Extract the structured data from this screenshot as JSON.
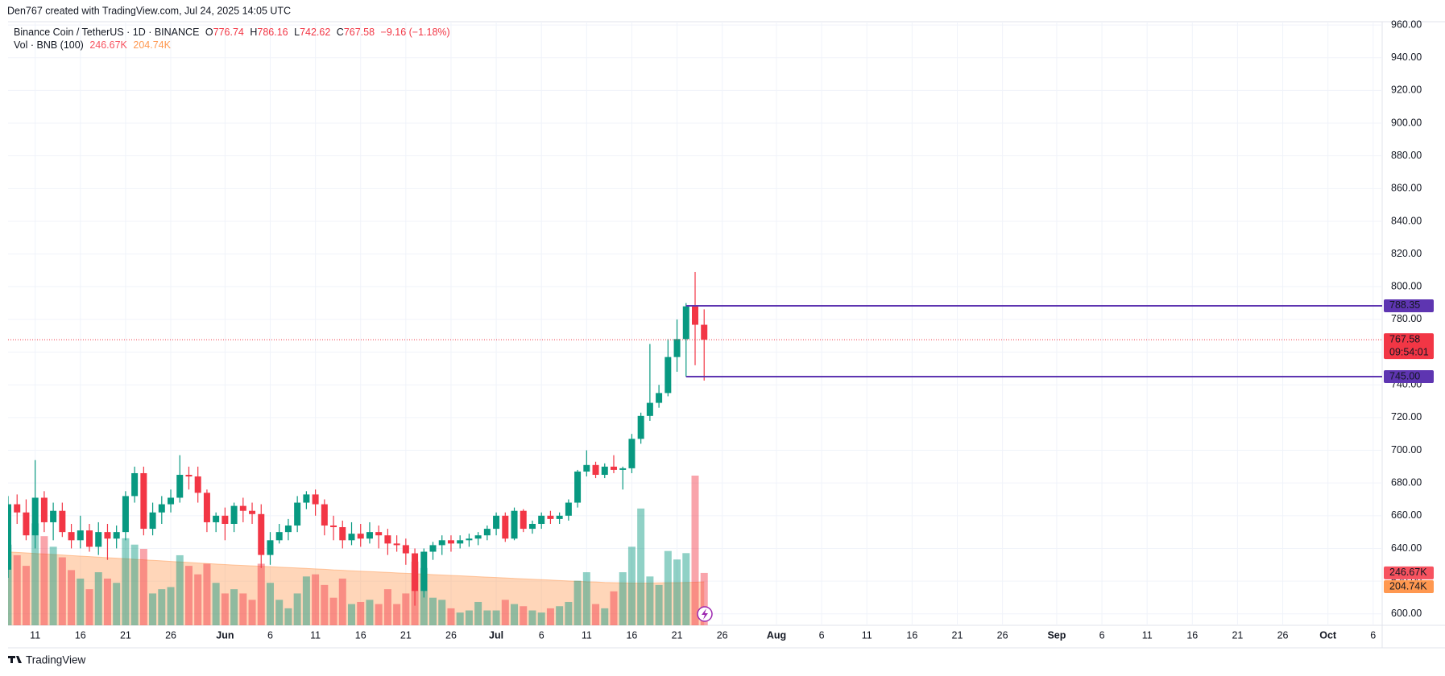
{
  "header": {
    "attribution": "Den767 created with TradingView.com, Jul 24, 2025 14:05 UTC"
  },
  "footer": {
    "brand": "TradingView"
  },
  "chart_data": {
    "type": "candlestick",
    "title": "Binance Coin / TetherUS · 1D · BINANCE",
    "ohlc_labels": [
      "O",
      "H",
      "L",
      "C"
    ],
    "change": "−9.16 (−1.18%)",
    "x": [
      "2025-05-08",
      "2025-05-09",
      "2025-05-10",
      "2025-05-11",
      "2025-05-12",
      "2025-05-13",
      "2025-05-14",
      "2025-05-15",
      "2025-05-16",
      "2025-05-17",
      "2025-05-18",
      "2025-05-19",
      "2025-05-20",
      "2025-05-21",
      "2025-05-22",
      "2025-05-23",
      "2025-05-24",
      "2025-05-25",
      "2025-05-26",
      "2025-05-27",
      "2025-05-28",
      "2025-05-29",
      "2025-05-30",
      "2025-05-31",
      "2025-06-01",
      "2025-06-02",
      "2025-06-03",
      "2025-06-04",
      "2025-06-05",
      "2025-06-06",
      "2025-06-07",
      "2025-06-08",
      "2025-06-09",
      "2025-06-10",
      "2025-06-11",
      "2025-06-12",
      "2025-06-13",
      "2025-06-14",
      "2025-06-15",
      "2025-06-16",
      "2025-06-17",
      "2025-06-18",
      "2025-06-19",
      "2025-06-20",
      "2025-06-21",
      "2025-06-22",
      "2025-06-23",
      "2025-06-24",
      "2025-06-25",
      "2025-06-26",
      "2025-06-27",
      "2025-06-28",
      "2025-06-29",
      "2025-06-30",
      "2025-07-01",
      "2025-07-02",
      "2025-07-03",
      "2025-07-04",
      "2025-07-05",
      "2025-07-06",
      "2025-07-07",
      "2025-07-08",
      "2025-07-09",
      "2025-07-10",
      "2025-07-11",
      "2025-07-12",
      "2025-07-13",
      "2025-07-14",
      "2025-07-15",
      "2025-07-16",
      "2025-07-17",
      "2025-07-18",
      "2025-07-19",
      "2025-07-20",
      "2025-07-21",
      "2025-07-22",
      "2025-07-23",
      "2025-07-24"
    ],
    "open": [
      627,
      667,
      662,
      648,
      671,
      656,
      663,
      650,
      645,
      651,
      641,
      650,
      646,
      650,
      672,
      686,
      652,
      662,
      667,
      671,
      685,
      684,
      674,
      656,
      660,
      655,
      666,
      663,
      661,
      636,
      645,
      650,
      654,
      668,
      673,
      667,
      654,
      653,
      645,
      649,
      646,
      650,
      648,
      643,
      642,
      637,
      614,
      638,
      642,
      645,
      643,
      645,
      646,
      648,
      652,
      660,
      646,
      663,
      652,
      655,
      660,
      658,
      660,
      668,
      687,
      691,
      685,
      690,
      688,
      689,
      707,
      721,
      729,
      735,
      757,
      768,
      788,
      776.74
    ],
    "high": [
      672,
      673,
      670,
      694,
      675,
      668,
      668,
      655,
      660,
      655,
      656,
      655,
      654,
      675,
      690,
      690,
      668,
      672,
      676,
      697,
      690,
      690,
      676,
      662,
      665,
      668,
      671,
      668,
      667,
      650,
      655,
      658,
      672,
      675,
      676,
      670,
      660,
      657,
      656,
      655,
      656,
      654,
      652,
      648,
      646,
      640,
      640,
      644,
      648,
      648,
      648,
      649,
      650,
      654,
      662,
      662,
      665,
      664,
      657,
      662,
      663,
      662,
      670,
      688,
      700,
      693,
      692,
      697,
      690,
      710,
      723,
      765,
      740,
      768,
      780,
      790,
      809,
      786.16
    ],
    "low": [
      622,
      655,
      645,
      640,
      650,
      645,
      647,
      640,
      640,
      638,
      636,
      633,
      640,
      645,
      668,
      648,
      648,
      655,
      662,
      668,
      676,
      668,
      650,
      650,
      645,
      650,
      656,
      655,
      628,
      630,
      643,
      645,
      650,
      664,
      660,
      648,
      645,
      640,
      642,
      641,
      643,
      640,
      636,
      638,
      630,
      605,
      610,
      633,
      636,
      638,
      640,
      641,
      642,
      645,
      648,
      644,
      645,
      650,
      649,
      652,
      655,
      655,
      657,
      665,
      684,
      683,
      683,
      686,
      676,
      686,
      704,
      718,
      726,
      733,
      748,
      745,
      752,
      742.62
    ],
    "close": [
      667,
      662,
      648,
      671,
      656,
      663,
      650,
      645,
      651,
      641,
      650,
      646,
      650,
      672,
      686,
      652,
      662,
      667,
      671,
      685,
      684,
      674,
      656,
      660,
      655,
      666,
      663,
      661,
      636,
      645,
      650,
      654,
      668,
      673,
      667,
      654,
      653,
      645,
      649,
      646,
      650,
      648,
      643,
      642,
      637,
      614,
      638,
      642,
      645,
      643,
      645,
      646,
      648,
      652,
      660,
      646,
      663,
      652,
      655,
      660,
      658,
      660,
      668,
      687,
      691,
      685,
      690,
      688,
      689,
      707,
      721,
      729,
      735,
      757,
      768,
      788,
      776.74,
      767.58
    ],
    "up_color": "#089981",
    "down_color": "#f23645",
    "xlim": [
      "2025-05-08",
      "2025-10-07"
    ],
    "xticks": [
      {
        "value": "2025-05-11",
        "label": "11"
      },
      {
        "value": "2025-05-16",
        "label": "16"
      },
      {
        "value": "2025-05-21",
        "label": "21"
      },
      {
        "value": "2025-05-26",
        "label": "26"
      },
      {
        "value": "2025-06-01",
        "label": "Jun"
      },
      {
        "value": "2025-06-06",
        "label": "6"
      },
      {
        "value": "2025-06-11",
        "label": "11"
      },
      {
        "value": "2025-06-16",
        "label": "16"
      },
      {
        "value": "2025-06-21",
        "label": "21"
      },
      {
        "value": "2025-06-26",
        "label": "26"
      },
      {
        "value": "2025-07-01",
        "label": "Jul"
      },
      {
        "value": "2025-07-06",
        "label": "6"
      },
      {
        "value": "2025-07-11",
        "label": "11"
      },
      {
        "value": "2025-07-16",
        "label": "16"
      },
      {
        "value": "2025-07-21",
        "label": "21"
      },
      {
        "value": "2025-07-26",
        "label": "26"
      },
      {
        "value": "2025-08-01",
        "label": "Aug"
      },
      {
        "value": "2025-08-06",
        "label": "6"
      },
      {
        "value": "2025-08-11",
        "label": "11"
      },
      {
        "value": "2025-08-16",
        "label": "16"
      },
      {
        "value": "2025-08-21",
        "label": "21"
      },
      {
        "value": "2025-08-26",
        "label": "26"
      },
      {
        "value": "2025-09-01",
        "label": "Sep"
      },
      {
        "value": "2025-09-06",
        "label": "6"
      },
      {
        "value": "2025-09-11",
        "label": "11"
      },
      {
        "value": "2025-09-16",
        "label": "16"
      },
      {
        "value": "2025-09-21",
        "label": "21"
      },
      {
        "value": "2025-09-26",
        "label": "26"
      },
      {
        "value": "2025-10-01",
        "label": "Oct"
      },
      {
        "value": "2025-10-06",
        "label": "6"
      }
    ],
    "ylim": [
      593,
      962
    ],
    "yticks": [
      {
        "value": 600,
        "label": "600.00"
      },
      {
        "value": 620,
        "label": "620.00"
      },
      {
        "value": 640,
        "label": "640.00"
      },
      {
        "value": 660,
        "label": "660.00"
      },
      {
        "value": 680,
        "label": "680.00"
      },
      {
        "value": 700,
        "label": "700.00"
      },
      {
        "value": 720,
        "label": "720.00"
      },
      {
        "value": 740,
        "label": "740.00"
      },
      {
        "value": 760,
        "label": "760.00"
      },
      {
        "value": 780,
        "label": "780.00"
      },
      {
        "value": 800,
        "label": "800.00"
      },
      {
        "value": 820,
        "label": "820.00"
      },
      {
        "value": 840,
        "label": "840.00"
      },
      {
        "value": 860,
        "label": "860.00"
      },
      {
        "value": 880,
        "label": "880.00"
      },
      {
        "value": 900,
        "label": "900.00"
      },
      {
        "value": 920,
        "label": "920.00"
      },
      {
        "value": 940,
        "label": "940.00"
      },
      {
        "value": 960,
        "label": "960.00"
      }
    ],
    "grid": true,
    "countdown": "09:54:01",
    "levels": [
      788.35,
      {
        "value": 745,
        "label": "745.00"
      }
    ],
    "level_start": "2025-07-22",
    "level_color": "#5e35b1",
    "volume": {
      "name": "Vol · BNB (100)",
      "values": [
        380000,
        330000,
        280000,
        480000,
        420000,
        370000,
        320000,
        260000,
        220000,
        170000,
        250000,
        220000,
        200000,
        410000,
        380000,
        360000,
        150000,
        170000,
        180000,
        330000,
        280000,
        240000,
        290000,
        200000,
        150000,
        170000,
        150000,
        120000,
        290000,
        200000,
        120000,
        80000,
        150000,
        230000,
        240000,
        190000,
        130000,
        220000,
        100000,
        110000,
        120000,
        100000,
        170000,
        100000,
        150000,
        300000,
        270000,
        130000,
        120000,
        80000,
        60000,
        70000,
        110000,
        70000,
        70000,
        120000,
        100000,
        90000,
        70000,
        60000,
        80000,
        90000,
        110000,
        210000,
        250000,
        100000,
        80000,
        160000,
        250000,
        370000,
        550000,
        230000,
        190000,
        350000,
        310000,
        340000,
        705000,
        246670
      ],
      "value_labels": [
        null,
        null,
        null,
        null,
        null,
        null,
        null,
        null,
        null,
        null,
        null,
        null,
        null,
        null,
        null,
        null,
        null,
        null,
        null,
        null,
        null,
        null,
        null,
        null,
        null,
        null,
        null,
        null,
        null,
        null,
        null,
        null,
        null,
        null,
        null,
        null,
        null,
        null,
        null,
        null,
        null,
        null,
        null,
        null,
        null,
        null,
        null,
        null,
        null,
        null,
        null,
        null,
        null,
        null,
        null,
        null,
        null,
        null,
        null,
        null,
        null,
        null,
        null,
        null,
        null,
        null,
        null,
        null,
        null,
        null,
        null,
        null,
        null,
        null,
        null,
        null,
        null,
        "246.67K"
      ],
      "up_color": "rgba(8,153,129,0.45)",
      "down_color": "rgba(242,54,69,0.45)",
      "ma_values": [
        346000,
        343500,
        341000,
        338500,
        336000,
        333500,
        331000,
        328500,
        326000,
        323500,
        321000,
        318500,
        316000,
        313500,
        311000,
        308500,
        306000,
        303500,
        301000,
        298500,
        296000,
        293500,
        291000,
        288500,
        286000,
        284000,
        282000,
        280000,
        278000,
        276000,
        274000,
        272000,
        270000,
        268000,
        266000,
        264000,
        261000,
        259000,
        257000,
        255000,
        253000,
        251000,
        249000,
        247000,
        245000,
        243000,
        241000,
        239000,
        237000,
        235000,
        233000,
        231000,
        229000,
        227000,
        225000,
        223000,
        221000,
        219000,
        217000,
        215000,
        213000,
        211000,
        209000,
        207000,
        205000,
        204000,
        202000,
        201000,
        200000,
        199000,
        199000,
        199000,
        200000,
        201000,
        201000,
        202000,
        203000,
        204740
      ],
      "ma_value_labels": [
        null,
        null,
        null,
        null,
        null,
        null,
        null,
        null,
        null,
        null,
        null,
        null,
        null,
        null,
        null,
        null,
        null,
        null,
        null,
        null,
        null,
        null,
        null,
        null,
        null,
        null,
        null,
        null,
        null,
        null,
        null,
        null,
        null,
        null,
        null,
        null,
        null,
        null,
        null,
        null,
        null,
        null,
        null,
        null,
        null,
        null,
        null,
        null,
        null,
        null,
        null,
        null,
        null,
        null,
        null,
        null,
        null,
        null,
        null,
        null,
        null,
        null,
        null,
        null,
        null,
        null,
        null,
        null,
        null,
        null,
        null,
        null,
        null,
        null,
        null,
        null,
        null,
        "204.74K"
      ],
      "ma_color": "#ff9850"
    }
  }
}
